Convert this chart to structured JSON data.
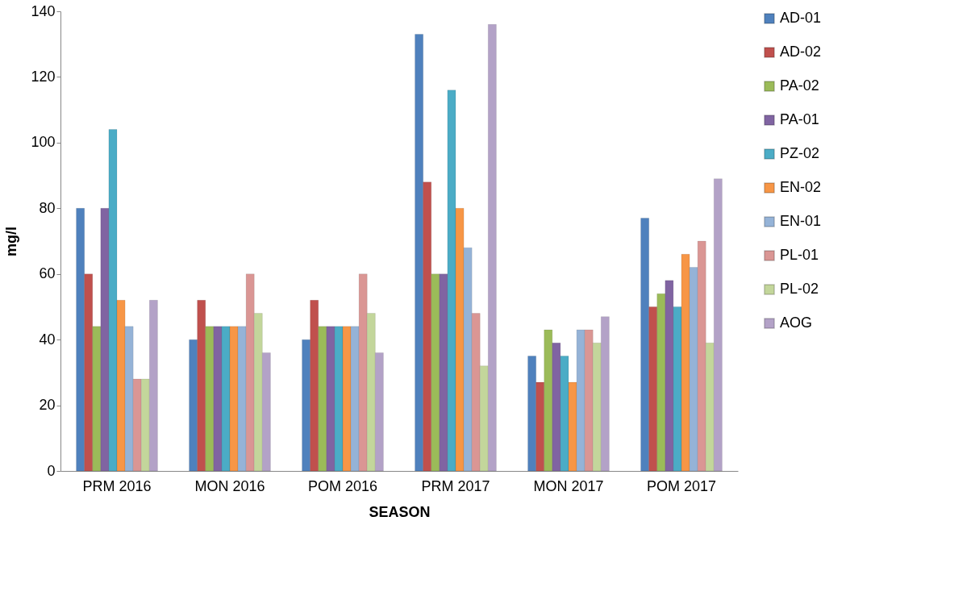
{
  "chart_data": {
    "type": "bar",
    "xlabel": "SEASON",
    "ylabel": "mg/l",
    "categories": [
      "PRM 2016",
      "MON 2016",
      "POM 2016",
      "PRM 2017",
      "MON 2017",
      "POM 2017"
    ],
    "series": [
      {
        "name": "AD-01",
        "color": "#4f81bd",
        "values": [
          80,
          40,
          40,
          133,
          35,
          77
        ]
      },
      {
        "name": "AD-02",
        "color": "#c0504d",
        "values": [
          60,
          52,
          52,
          88,
          27,
          50
        ]
      },
      {
        "name": "PA-02",
        "color": "#9bbb59",
        "values": [
          44,
          44,
          44,
          60,
          43,
          54
        ]
      },
      {
        "name": "PA-01",
        "color": "#8064a2",
        "values": [
          80,
          44,
          44,
          60,
          39,
          58
        ]
      },
      {
        "name": "PZ-02",
        "color": "#4bacc6",
        "values": [
          104,
          44,
          44,
          116,
          35,
          50
        ]
      },
      {
        "name": "EN-02",
        "color": "#f79646",
        "values": [
          52,
          44,
          44,
          80,
          27,
          66
        ]
      },
      {
        "name": "EN-01",
        "color": "#95b3d7",
        "values": [
          44,
          44,
          44,
          68,
          43,
          62
        ]
      },
      {
        "name": "PL-01",
        "color": "#da9694",
        "values": [
          28,
          60,
          60,
          48,
          43,
          70
        ]
      },
      {
        "name": "PL-02",
        "color": "#c3d69b",
        "values": [
          28,
          48,
          48,
          32,
          39,
          39
        ]
      },
      {
        "name": "AOG",
        "color": "#b3a2c7",
        "values": [
          52,
          36,
          36,
          136,
          47,
          89
        ]
      }
    ],
    "ylim": [
      0,
      140
    ],
    "yticks": [
      0,
      20,
      40,
      60,
      80,
      100,
      120,
      140
    ],
    "grid": false,
    "legend": "right"
  }
}
